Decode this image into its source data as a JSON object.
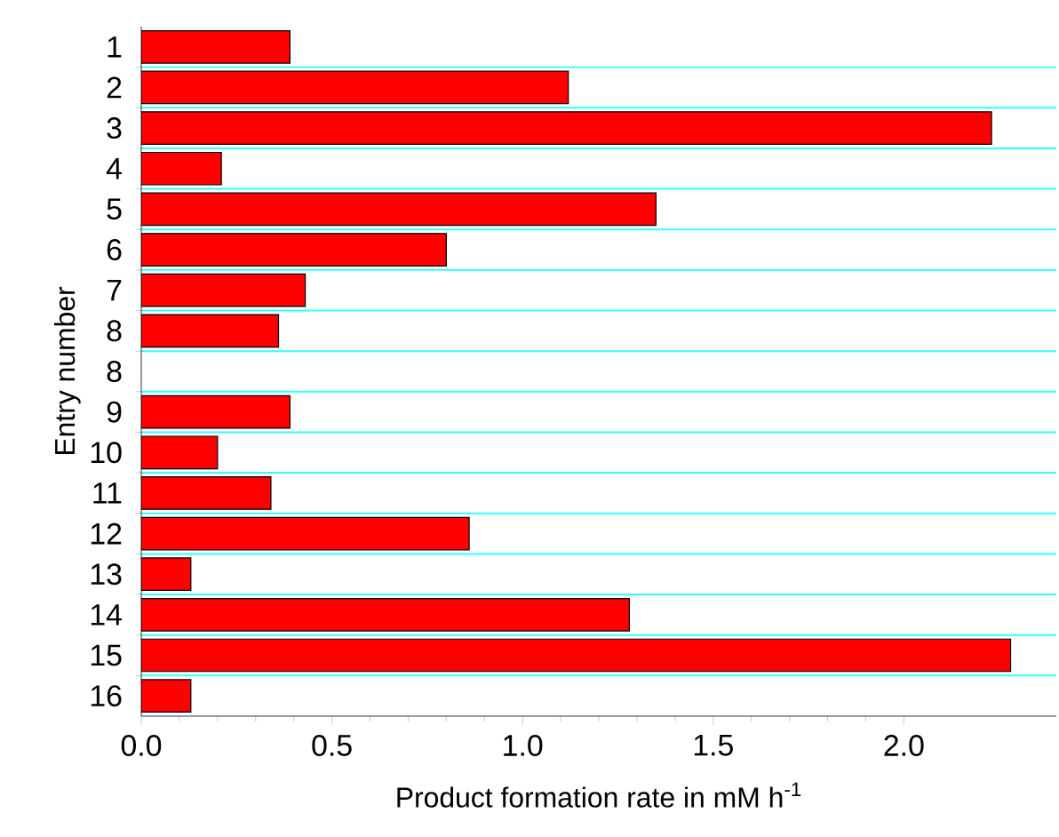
{
  "chart_data": {
    "type": "bar",
    "orientation": "horizontal",
    "ylabel": "Entry number",
    "xlabel": "Product formation rate in mM h$^{-1}$",
    "categories": [
      "1",
      "2",
      "3",
      "4",
      "5",
      "6",
      "7",
      "8",
      "8",
      "9",
      "10",
      "11",
      "12",
      "13",
      "14",
      "15",
      "16"
    ],
    "values": [
      0.39,
      1.12,
      2.23,
      0.21,
      1.35,
      0.8,
      0.43,
      0.36,
      null,
      0.39,
      0.2,
      0.34,
      0.86,
      0.13,
      1.28,
      2.28,
      0.13
    ],
    "color": "#ff0000",
    "grid": "y",
    "xlim": [
      0,
      2.4
    ],
    "xticks": [
      {
        "value": 0,
        "label": "0.0"
      },
      {
        "value": 0.5,
        "label": "0.5"
      },
      {
        "value": 1,
        "label": "1.0"
      },
      {
        "value": 1.5,
        "label": "1.5"
      },
      {
        "value": 2,
        "label": "2.0"
      }
    ]
  }
}
